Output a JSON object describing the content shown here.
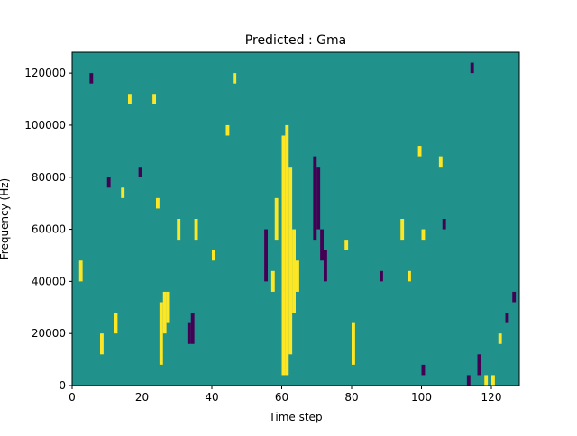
{
  "chart_data": {
    "type": "heatmap",
    "title": "Predicted : Gma",
    "xlabel": "Time step",
    "ylabel": "Frequency (Hz)",
    "xlim": [
      0,
      128
    ],
    "ylim": [
      0,
      128000
    ],
    "x_ticks": [
      0,
      20,
      40,
      60,
      80,
      100,
      120
    ],
    "x_tick_labels": [
      "0",
      "20",
      "40",
      "60",
      "80",
      "100",
      "120"
    ],
    "y_ticks": [
      0,
      20000,
      40000,
      60000,
      80000,
      100000,
      120000
    ],
    "y_tick_labels": [
      "0",
      "20000",
      "40000",
      "60000",
      "80000",
      "100000",
      "120000"
    ],
    "grid": false,
    "legend": "none",
    "value_levels": [
      -1,
      0,
      1
    ],
    "colors": {
      "-1": "#440154",
      "0": "#21918c",
      "1": "#fde725"
    },
    "background_value": 0,
    "cells": [
      {
        "x": 60,
        "y": [
          4000,
          96000
        ],
        "value": 1
      },
      {
        "x": 61,
        "y": [
          4000,
          100000
        ],
        "value": 1
      },
      {
        "x": 62,
        "y": [
          12000,
          84000
        ],
        "value": 1
      },
      {
        "x": 63,
        "y": [
          28000,
          60000
        ],
        "value": 1
      },
      {
        "x": 64,
        "y": [
          36000,
          48000
        ],
        "value": 1
      },
      {
        "x": 69,
        "y": [
          56000,
          88000
        ],
        "value": -1
      },
      {
        "x": 70,
        "y": [
          60000,
          84000
        ],
        "value": -1
      },
      {
        "x": 71,
        "y": [
          48000,
          60000
        ],
        "value": -1
      },
      {
        "x": 72,
        "y": [
          40000,
          52000
        ],
        "value": -1
      },
      {
        "x": 25,
        "y": [
          8000,
          32000
        ],
        "value": 1
      },
      {
        "x": 26,
        "y": [
          20000,
          36000
        ],
        "value": 1
      },
      {
        "x": 27,
        "y": [
          24000,
          36000
        ],
        "value": 1
      },
      {
        "x": 33,
        "y": [
          16000,
          24000
        ],
        "value": -1
      },
      {
        "x": 34,
        "y": [
          16000,
          28000
        ],
        "value": -1
      },
      {
        "x": 57,
        "y": [
          36000,
          44000
        ],
        "value": 1
      },
      {
        "x": 58,
        "y": [
          56000,
          72000
        ],
        "value": 1
      },
      {
        "x": 55,
        "y": [
          40000,
          60000
        ],
        "value": -1
      },
      {
        "x": 8,
        "y": [
          12000,
          20000
        ],
        "value": 1
      },
      {
        "x": 2,
        "y": [
          40000,
          48000
        ],
        "value": 1
      },
      {
        "x": 12,
        "y": [
          20000,
          28000
        ],
        "value": 1
      },
      {
        "x": 30,
        "y": [
          56000,
          64000
        ],
        "value": 1
      },
      {
        "x": 35,
        "y": [
          56000,
          64000
        ],
        "value": 1
      },
      {
        "x": 24,
        "y": [
          68000,
          72000
        ],
        "value": 1
      },
      {
        "x": 10,
        "y": [
          76000,
          80000
        ],
        "value": -1
      },
      {
        "x": 19,
        "y": [
          80000,
          84000
        ],
        "value": -1
      },
      {
        "x": 23,
        "y": [
          108000,
          112000
        ],
        "value": 1
      },
      {
        "x": 44,
        "y": [
          96000,
          100000
        ],
        "value": 1
      },
      {
        "x": 80,
        "y": [
          8000,
          24000
        ],
        "value": 1
      },
      {
        "x": 78,
        "y": [
          52000,
          56000
        ],
        "value": 1
      },
      {
        "x": 94,
        "y": [
          56000,
          64000
        ],
        "value": 1
      },
      {
        "x": 100,
        "y": [
          56000,
          60000
        ],
        "value": 1
      },
      {
        "x": 106,
        "y": [
          60000,
          64000
        ],
        "value": -1
      },
      {
        "x": 99,
        "y": [
          88000,
          92000
        ],
        "value": 1
      },
      {
        "x": 116,
        "y": [
          4000,
          12000
        ],
        "value": -1
      },
      {
        "x": 118,
        "y": [
          0,
          4000
        ],
        "value": 1
      },
      {
        "x": 124,
        "y": [
          24000,
          28000
        ],
        "value": -1
      },
      {
        "x": 126,
        "y": [
          32000,
          36000
        ],
        "value": -1
      },
      {
        "x": 122,
        "y": [
          16000,
          20000
        ],
        "value": 1
      },
      {
        "x": 113,
        "y": [
          0,
          4000
        ],
        "value": -1
      },
      {
        "x": 120,
        "y": [
          0,
          4000
        ],
        "value": 1
      },
      {
        "x": 100,
        "y": [
          4000,
          8000
        ],
        "value": -1
      },
      {
        "x": 96,
        "y": [
          40000,
          44000
        ],
        "value": 1
      },
      {
        "x": 88,
        "y": [
          40000,
          44000
        ],
        "value": -1
      },
      {
        "x": 114,
        "y": [
          120000,
          124000
        ],
        "value": -1
      },
      {
        "x": 105,
        "y": [
          84000,
          88000
        ],
        "value": 1
      },
      {
        "x": 40,
        "y": [
          48000,
          52000
        ],
        "value": 1
      },
      {
        "x": 14,
        "y": [
          72000,
          76000
        ],
        "value": 1
      },
      {
        "x": 5,
        "y": [
          116000,
          120000
        ],
        "value": -1
      },
      {
        "x": 16,
        "y": [
          108000,
          112000
        ],
        "value": 1
      },
      {
        "x": 46,
        "y": [
          116000,
          120000
        ],
        "value": 1
      }
    ]
  }
}
